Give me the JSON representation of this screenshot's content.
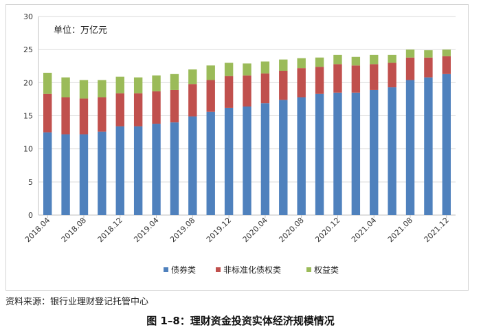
{
  "chart_data": {
    "type": "stacked-bar",
    "unit_label": "单位：万亿元",
    "ylim": [
      0,
      30
    ],
    "yticks": [
      0,
      5,
      10,
      15,
      20,
      25,
      30
    ],
    "grid": true,
    "categories": [
      "2018.04",
      "2018.06",
      "2018.08",
      "2018.10",
      "2018.12",
      "2019.02",
      "2019.04",
      "2019.06",
      "2019.08",
      "2019.10",
      "2019.12",
      "2020.02",
      "2020.04",
      "2020.06",
      "2020.08",
      "2020.10",
      "2020.12",
      "2021.02",
      "2021.04",
      "2021.06",
      "2021.08",
      "2021.10",
      "2021.12"
    ],
    "xtick_labels": [
      "2018.04",
      "2018.08",
      "2018.12",
      "2019.04",
      "2019.08",
      "2019.12",
      "2020.04",
      "2020.08",
      "2020.12",
      "2021.04",
      "2021.08",
      "2021.12"
    ],
    "series": [
      {
        "name": "债券类",
        "color": "#4f81bd",
        "values": [
          12.5,
          12.2,
          12.2,
          12.6,
          13.4,
          13.4,
          13.8,
          14.0,
          14.9,
          15.6,
          16.2,
          16.4,
          16.9,
          17.4,
          17.8,
          18.3,
          18.5,
          18.5,
          18.9,
          19.3,
          20.4,
          20.8,
          21.3
        ]
      },
      {
        "name": "非标准化债权类",
        "color": "#c0504d",
        "values": [
          5.8,
          5.6,
          5.4,
          5.2,
          5.0,
          5.0,
          4.9,
          4.9,
          4.9,
          4.8,
          4.8,
          4.7,
          4.5,
          4.4,
          4.4,
          4.1,
          4.3,
          4.1,
          3.9,
          3.7,
          3.4,
          3.0,
          2.7
        ]
      },
      {
        "name": "权益类",
        "color": "#9bbb59",
        "values": [
          3.2,
          3.0,
          2.8,
          2.6,
          2.5,
          2.4,
          2.4,
          2.4,
          2.2,
          2.2,
          2.0,
          1.8,
          1.8,
          1.7,
          1.5,
          1.4,
          1.4,
          1.3,
          1.4,
          1.2,
          1.2,
          1.1,
          1.0
        ]
      }
    ]
  },
  "source_note": "资料来源：银行业理财登记托管中心",
  "figure_caption": "图 1–8：理财资金投资实体经济规模情况"
}
